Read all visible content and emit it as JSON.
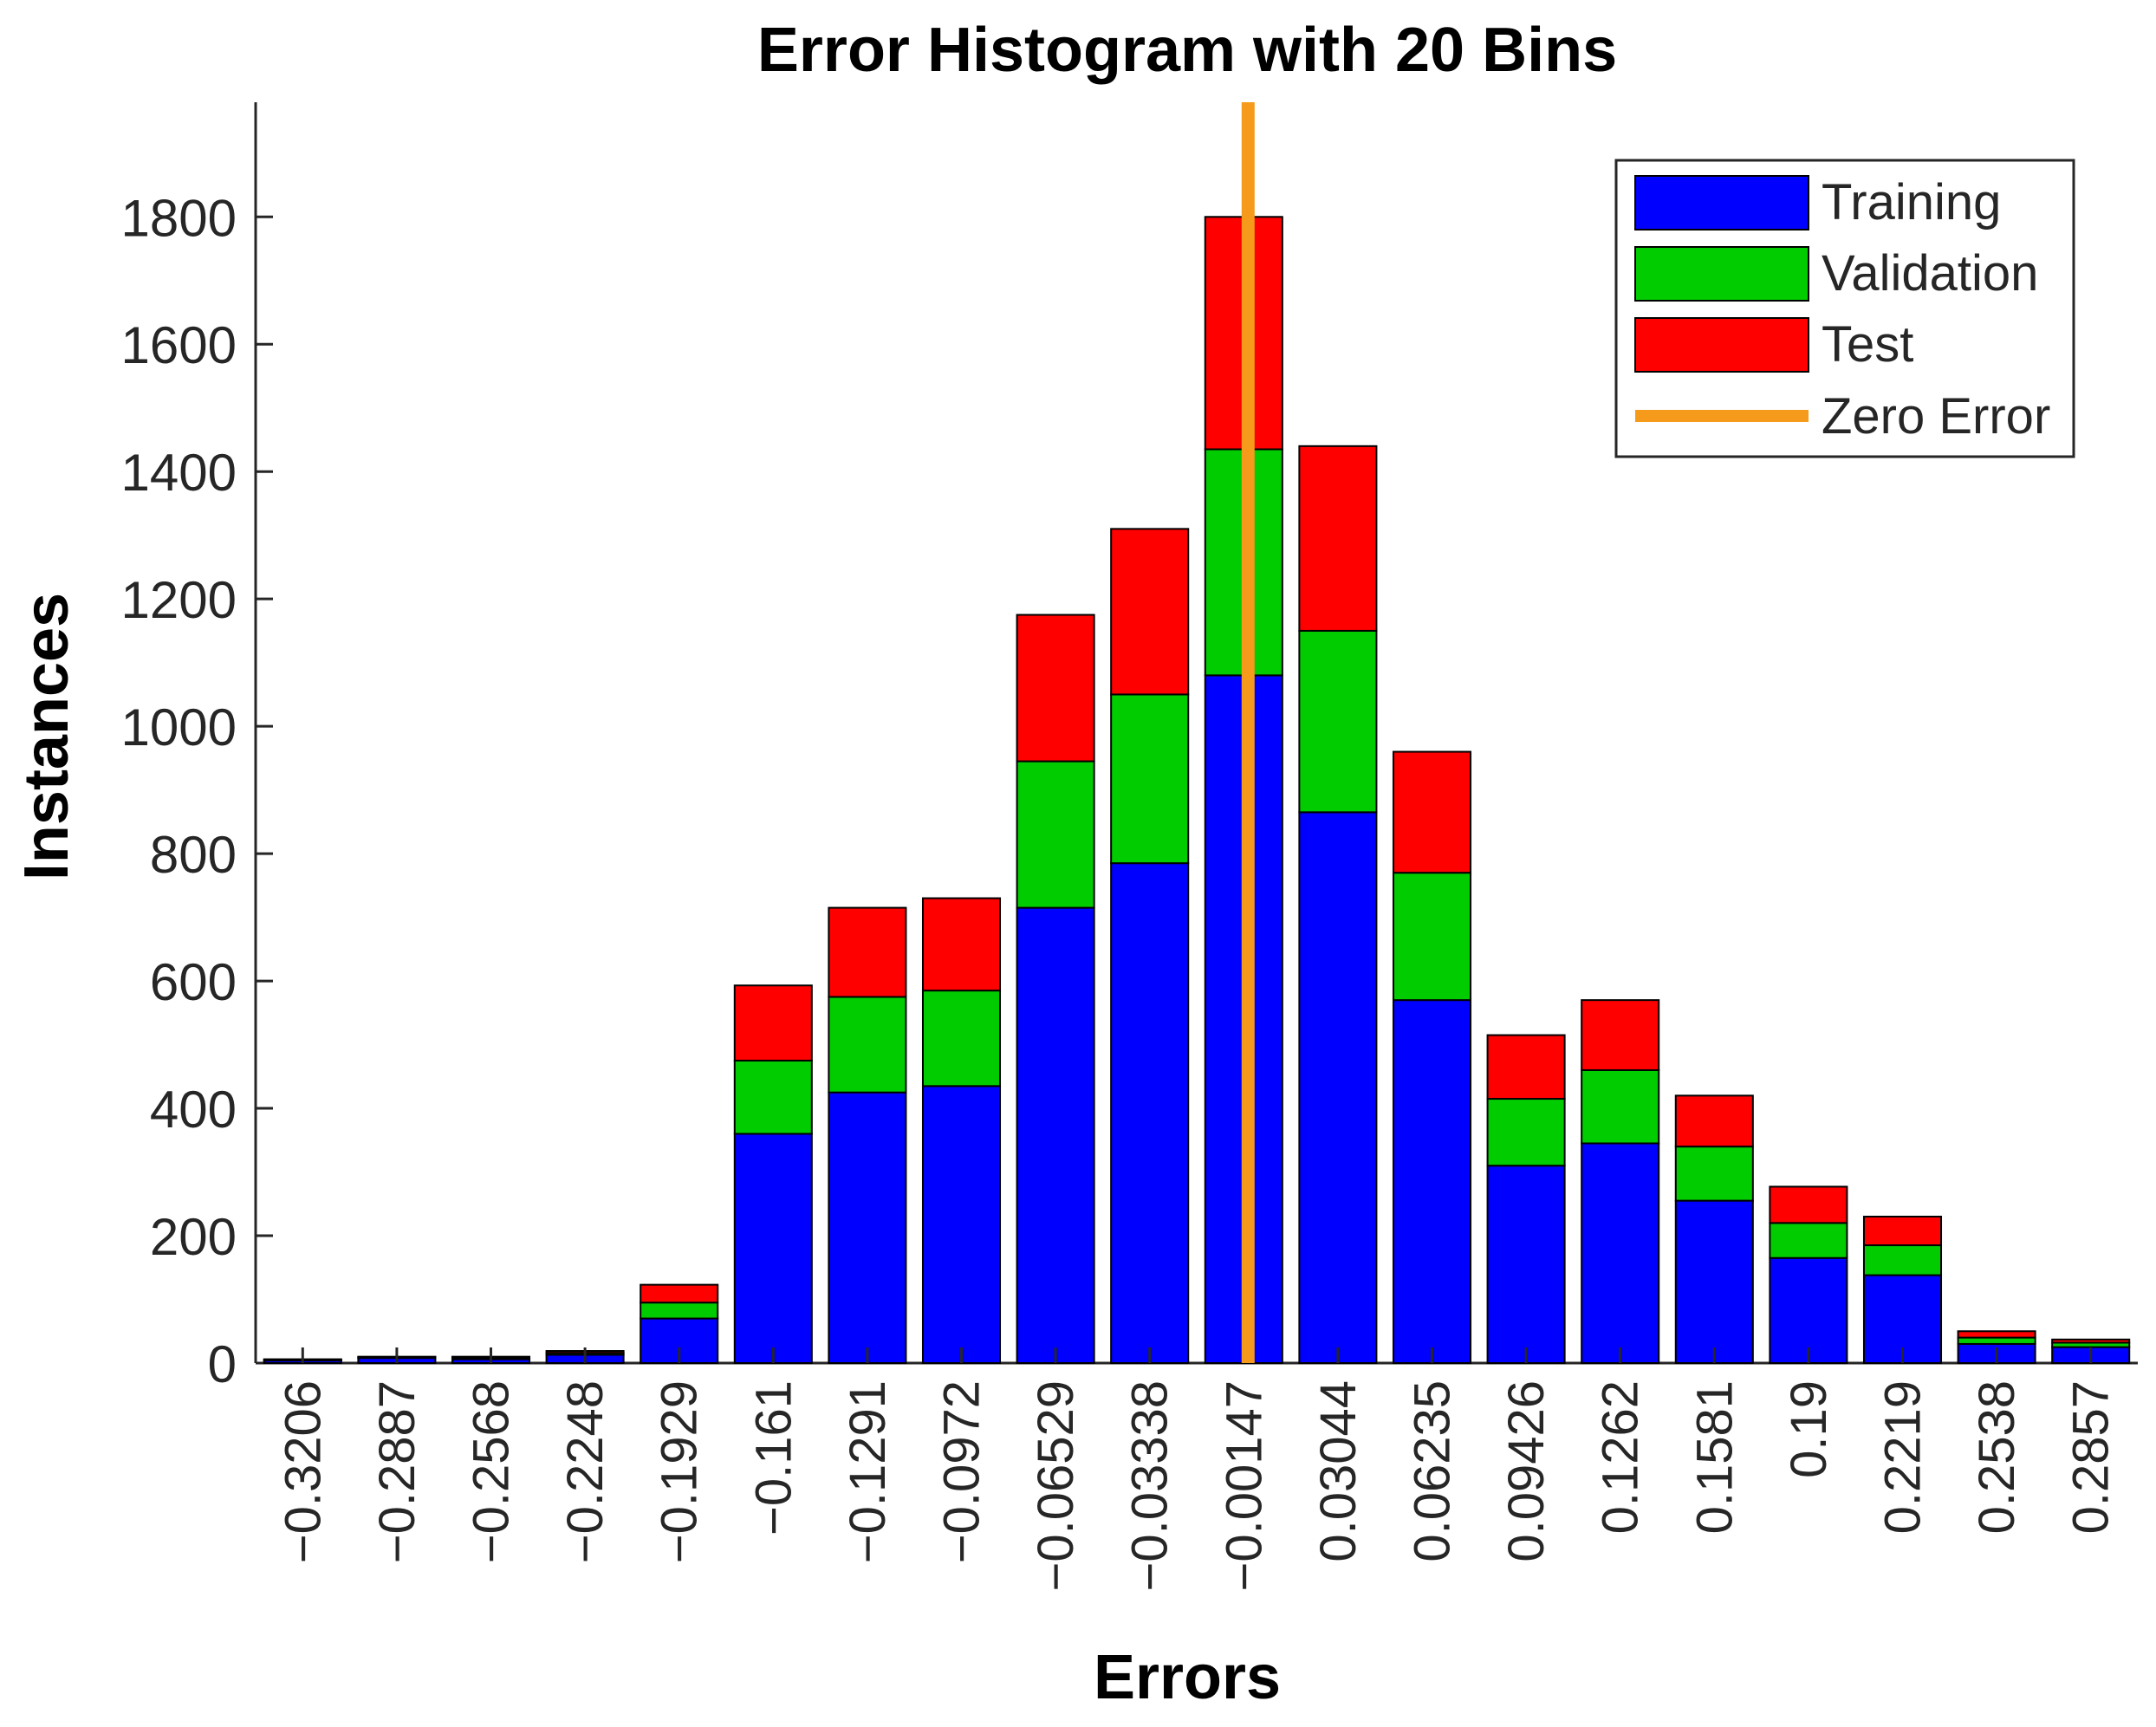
{
  "chart_data": {
    "type": "bar",
    "stacked": true,
    "title": "Error Histogram with 20 Bins",
    "xlabel": "Errors",
    "ylabel": "Instances",
    "ylim": [
      0,
      1980
    ],
    "yticks": [
      0,
      200,
      400,
      600,
      800,
      1000,
      1200,
      1400,
      1600,
      1800
    ],
    "grid": false,
    "legend_position": "top-right",
    "categories": [
      "-0.3206",
      "-0.2887",
      "-0.2568",
      "-0.2248",
      "-0.1929",
      "-0.161",
      "-0.1291",
      "-0.0972",
      "-0.06529",
      "-0.03338",
      "-0.00147",
      "0.03044",
      "0.06235",
      "0.09426",
      "0.1262",
      "0.1581",
      "0.19",
      "0.2219",
      "0.2538",
      "0.2857"
    ],
    "series": [
      {
        "name": "Training",
        "color": "#0000ff",
        "values": [
          4,
          8,
          6,
          13,
          70,
          360,
          425,
          435,
          715,
          785,
          1080,
          865,
          570,
          310,
          345,
          255,
          165,
          138,
          30,
          25
        ]
      },
      {
        "name": "Validation",
        "color": "#00cc00",
        "values": [
          1,
          1,
          2,
          3,
          25,
          115,
          150,
          150,
          230,
          265,
          355,
          285,
          200,
          105,
          115,
          85,
          55,
          47,
          10,
          7
        ]
      },
      {
        "name": "Test",
        "color": "#ff0000",
        "values": [
          1,
          1,
          2,
          3,
          28,
          118,
          140,
          145,
          230,
          260,
          365,
          290,
          190,
          100,
          110,
          80,
          57,
          45,
          10,
          5
        ]
      }
    ],
    "zero_error": {
      "name": "Zero Error",
      "color": "#f59a1a",
      "x_bin_index": 10.0
    }
  }
}
